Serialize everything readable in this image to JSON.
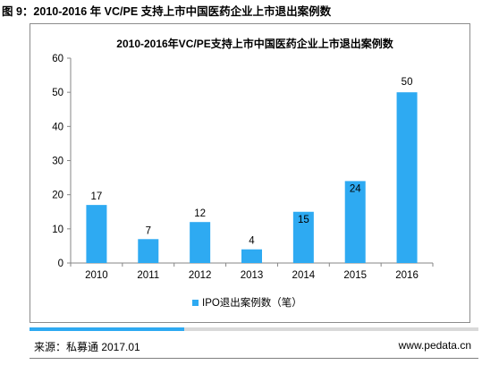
{
  "caption": "图 9：2010-2016 年 VC/PE 支持上市中国医药企业上市退出案例数",
  "source": "来源：私募通 2017.01",
  "site": "www.pedata.cn",
  "chart_data": {
    "type": "bar",
    "title": "2010-2016年VC/PE支持上市中国医药企业上市退出案例数",
    "categories": [
      "2010",
      "2011",
      "2012",
      "2013",
      "2014",
      "2015",
      "2016"
    ],
    "series": [
      {
        "name": "IPO退出案例数（笔）",
        "values": [
          17,
          7,
          12,
          4,
          15,
          24,
          50
        ]
      }
    ],
    "data_labels": [
      "17",
      "7",
      "12",
      "4",
      "15",
      "24",
      "50"
    ],
    "ylim": [
      0,
      60
    ],
    "yticks": [
      "0",
      "10",
      "20",
      "30",
      "40",
      "50",
      "60"
    ],
    "grid": false,
    "legend": "bottom",
    "colors": {
      "bar": "#2eaaf2",
      "axis": "#868686"
    }
  }
}
